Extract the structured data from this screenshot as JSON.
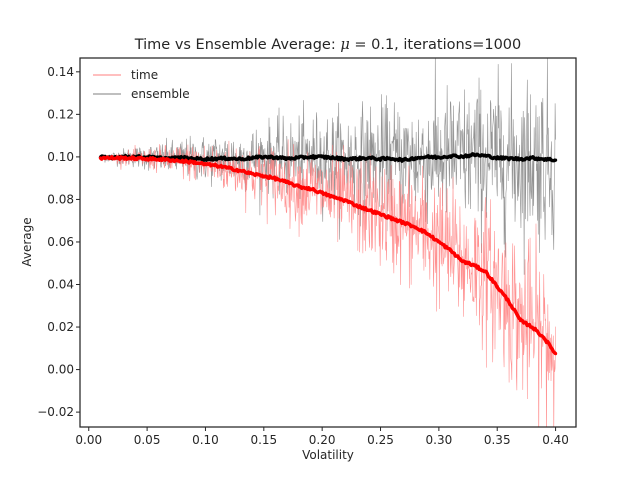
{
  "chart_data": {
    "type": "line",
    "title": "Time vs Ensemble Average: μ = 0.1, iterations=1000",
    "title_parts": {
      "prefix": "Time vs Ensemble Average: ",
      "mu_symbol": "μ",
      "suffix": " = 0.1, iterations=1000"
    },
    "xlabel": "Volatility",
    "ylabel": "Average",
    "xlim": [
      -0.0075,
      0.4175
    ],
    "ylim": [
      -0.027,
      0.1465
    ],
    "xticks": [
      0.0,
      0.05,
      0.1,
      0.15,
      0.2,
      0.25,
      0.3,
      0.35,
      0.4
    ],
    "xtick_labels": [
      "0.00",
      "0.05",
      "0.10",
      "0.15",
      "0.20",
      "0.25",
      "0.30",
      "0.35",
      "0.40"
    ],
    "yticks": [
      -0.02,
      0.0,
      0.02,
      0.04,
      0.06,
      0.08,
      0.1,
      0.12,
      0.14
    ],
    "ytick_labels": [
      "−0.02",
      "0.00",
      "0.02",
      "0.04",
      "0.06",
      "0.08",
      "0.10",
      "0.12",
      "0.14"
    ],
    "grid": false,
    "legend": {
      "placement": "top-left",
      "entries": [
        "time",
        "ensemble"
      ]
    },
    "x_range": [
      0.01,
      0.4
    ],
    "series": [
      {
        "name": "time",
        "color": "#ff0000",
        "raw_color": "#ff7f7f",
        "x": [
          0.01,
          0.02,
          0.03,
          0.04,
          0.05,
          0.06,
          0.07,
          0.08,
          0.09,
          0.1,
          0.11,
          0.12,
          0.13,
          0.14,
          0.15,
          0.16,
          0.17,
          0.18,
          0.19,
          0.2,
          0.21,
          0.22,
          0.23,
          0.24,
          0.25,
          0.26,
          0.27,
          0.28,
          0.29,
          0.3,
          0.31,
          0.32,
          0.33,
          0.34,
          0.35,
          0.36,
          0.37,
          0.38,
          0.39,
          0.4
        ],
        "values": [
          0.0995,
          0.0995,
          0.0995,
          0.0993,
          0.0991,
          0.0989,
          0.0985,
          0.098,
          0.0975,
          0.0965,
          0.0958,
          0.0947,
          0.0935,
          0.092,
          0.091,
          0.0898,
          0.088,
          0.086,
          0.085,
          0.083,
          0.081,
          0.0795,
          0.077,
          0.075,
          0.073,
          0.071,
          0.069,
          0.067,
          0.064,
          0.06,
          0.056,
          0.051,
          0.049,
          0.046,
          0.039,
          0.032,
          0.023,
          0.02,
          0.015,
          0.0075
        ],
        "noise_envelope": [
          0.0005,
          0.001,
          0.0015,
          0.002,
          0.0025,
          0.003,
          0.0035,
          0.004,
          0.0045,
          0.005,
          0.0055,
          0.006,
          0.0065,
          0.007,
          0.0075,
          0.008,
          0.0085,
          0.009,
          0.0095,
          0.01,
          0.0105,
          0.011,
          0.0115,
          0.012,
          0.0125,
          0.013,
          0.0135,
          0.014,
          0.0145,
          0.015,
          0.0155,
          0.016,
          0.0165,
          0.017,
          0.0175,
          0.018,
          0.0185,
          0.019,
          0.0195,
          0.02
        ]
      },
      {
        "name": "ensemble",
        "color": "#000000",
        "raw_color": "#808080",
        "x": [
          0.01,
          0.02,
          0.03,
          0.04,
          0.05,
          0.06,
          0.07,
          0.08,
          0.09,
          0.1,
          0.11,
          0.12,
          0.13,
          0.14,
          0.15,
          0.16,
          0.17,
          0.18,
          0.19,
          0.2,
          0.21,
          0.22,
          0.23,
          0.24,
          0.25,
          0.26,
          0.27,
          0.28,
          0.29,
          0.3,
          0.31,
          0.32,
          0.33,
          0.34,
          0.35,
          0.36,
          0.37,
          0.38,
          0.39,
          0.4
        ],
        "values": [
          0.0998,
          0.0998,
          0.1,
          0.1,
          0.0999,
          0.0995,
          0.0993,
          0.0996,
          0.0992,
          0.099,
          0.0992,
          0.0993,
          0.099,
          0.0995,
          0.1,
          0.0998,
          0.0992,
          0.0996,
          0.1,
          0.1,
          0.0995,
          0.099,
          0.0992,
          0.0995,
          0.099,
          0.0992,
          0.0985,
          0.0995,
          0.1,
          0.0998,
          0.1005,
          0.1002,
          0.101,
          0.1005,
          0.0995,
          0.0993,
          0.099,
          0.0995,
          0.099,
          0.0985
        ],
        "noise_envelope": [
          0.001,
          0.0015,
          0.002,
          0.0025,
          0.003,
          0.0035,
          0.004,
          0.0045,
          0.005,
          0.0055,
          0.006,
          0.0065,
          0.007,
          0.0075,
          0.008,
          0.0085,
          0.009,
          0.0095,
          0.01,
          0.0105,
          0.011,
          0.0115,
          0.012,
          0.0125,
          0.013,
          0.0135,
          0.014,
          0.0145,
          0.015,
          0.0155,
          0.016,
          0.0165,
          0.017,
          0.0175,
          0.018,
          0.0185,
          0.019,
          0.0195,
          0.02,
          0.0205
        ]
      }
    ]
  }
}
